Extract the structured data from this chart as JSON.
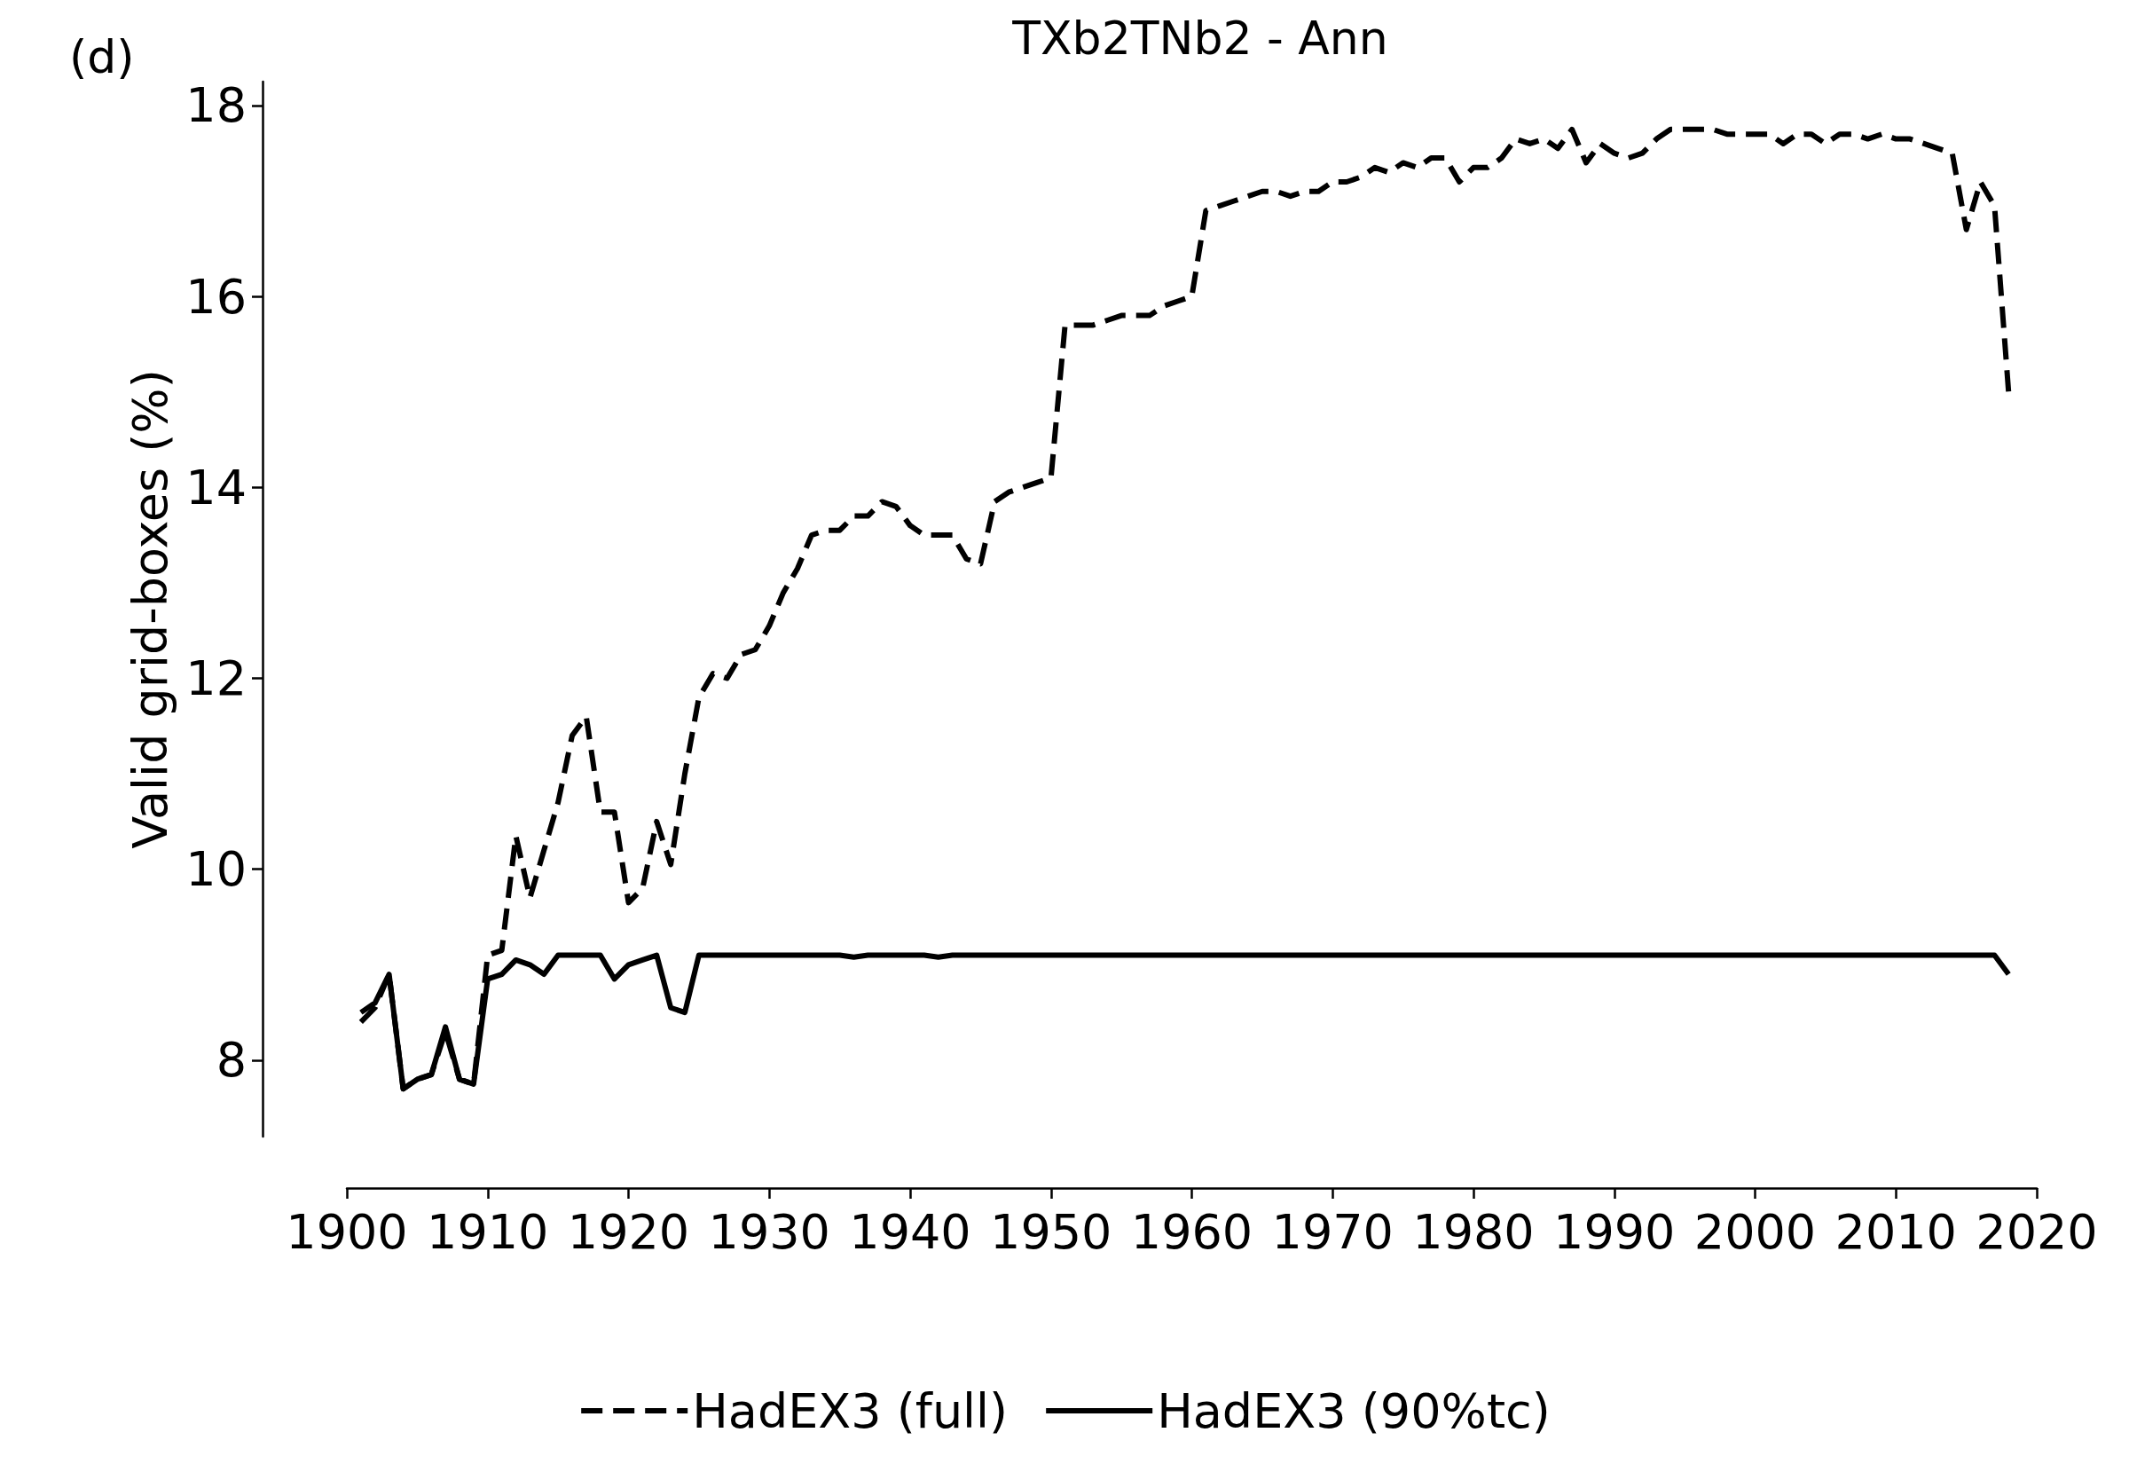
{
  "chart_data": {
    "type": "line",
    "title": "TXb2TNb2 - Ann",
    "ylabel": "Valid grid-boxes (%)",
    "annotations": [
      "(d)"
    ],
    "x": [
      1901,
      1902,
      1903,
      1904,
      1905,
      1906,
      1907,
      1908,
      1909,
      1910,
      1911,
      1912,
      1913,
      1914,
      1915,
      1916,
      1917,
      1918,
      1919,
      1920,
      1921,
      1922,
      1923,
      1924,
      1925,
      1926,
      1927,
      1928,
      1929,
      1930,
      1931,
      1932,
      1933,
      1934,
      1935,
      1936,
      1937,
      1938,
      1939,
      1940,
      1941,
      1942,
      1943,
      1944,
      1945,
      1946,
      1947,
      1948,
      1949,
      1950,
      1951,
      1952,
      1953,
      1954,
      1955,
      1956,
      1957,
      1958,
      1959,
      1960,
      1961,
      1962,
      1963,
      1964,
      1965,
      1966,
      1967,
      1968,
      1969,
      1970,
      1971,
      1972,
      1973,
      1974,
      1975,
      1976,
      1977,
      1978,
      1979,
      1980,
      1981,
      1982,
      1983,
      1984,
      1985,
      1986,
      1987,
      1988,
      1989,
      1990,
      1991,
      1992,
      1993,
      1994,
      1995,
      1996,
      1997,
      1998,
      1999,
      2000,
      2001,
      2002,
      2003,
      2004,
      2005,
      2006,
      2007,
      2008,
      2009,
      2010,
      2011,
      2012,
      2013,
      2014,
      2015,
      2016,
      2017,
      2018
    ],
    "series": [
      {
        "name": "HadEX3 (full)",
        "color": "#000000",
        "line_style": "dashed",
        "values": [
          8.4,
          8.55,
          8.9,
          7.7,
          7.8,
          7.85,
          8.3,
          7.8,
          7.75,
          9.1,
          9.15,
          10.35,
          9.7,
          10.2,
          10.7,
          11.4,
          11.6,
          10.6,
          10.6,
          9.65,
          9.8,
          10.5,
          10.05,
          11.0,
          11.8,
          12.05,
          12.0,
          12.25,
          12.3,
          12.55,
          12.9,
          13.15,
          13.5,
          13.55,
          13.55,
          13.7,
          13.7,
          13.85,
          13.8,
          13.6,
          13.5,
          13.5,
          13.5,
          13.25,
          13.2,
          13.85,
          13.95,
          14.0,
          14.05,
          14.1,
          15.7,
          15.7,
          15.7,
          15.75,
          15.8,
          15.8,
          15.8,
          15.9,
          15.95,
          16.0,
          16.9,
          16.95,
          17.0,
          17.05,
          17.1,
          17.1,
          17.05,
          17.1,
          17.1,
          17.2,
          17.2,
          17.25,
          17.35,
          17.3,
          17.4,
          17.35,
          17.45,
          17.45,
          17.2,
          17.35,
          17.35,
          17.45,
          17.65,
          17.6,
          17.65,
          17.55,
          17.75,
          17.4,
          17.6,
          17.5,
          17.45,
          17.5,
          17.65,
          17.75,
          17.75,
          17.75,
          17.75,
          17.7,
          17.7,
          17.7,
          17.7,
          17.6,
          17.7,
          17.7,
          17.6,
          17.7,
          17.7,
          17.65,
          17.7,
          17.65,
          17.65,
          17.6,
          17.55,
          17.5,
          16.7,
          17.2,
          16.95,
          15.0
        ]
      },
      {
        "name": "HadEX3 (90%tc)",
        "color": "#000000",
        "line_style": "solid",
        "values": [
          8.5,
          8.6,
          8.9,
          7.7,
          7.8,
          7.85,
          8.35,
          7.8,
          7.75,
          8.85,
          8.9,
          9.05,
          9.0,
          8.9,
          9.1,
          9.1,
          9.1,
          9.1,
          8.85,
          9.0,
          9.05,
          9.1,
          8.55,
          8.5,
          9.1,
          9.1,
          9.1,
          9.1,
          9.1,
          9.1,
          9.1,
          9.1,
          9.1,
          9.1,
          9.1,
          9.08,
          9.1,
          9.1,
          9.1,
          9.1,
          9.1,
          9.08,
          9.1,
          9.1,
          9.1,
          9.1,
          9.1,
          9.1,
          9.1,
          9.1,
          9.1,
          9.1,
          9.1,
          9.1,
          9.1,
          9.1,
          9.1,
          9.1,
          9.1,
          9.1,
          9.1,
          9.1,
          9.1,
          9.1,
          9.1,
          9.1,
          9.1,
          9.1,
          9.1,
          9.1,
          9.1,
          9.1,
          9.1,
          9.1,
          9.1,
          9.1,
          9.1,
          9.1,
          9.1,
          9.1,
          9.1,
          9.1,
          9.1,
          9.1,
          9.1,
          9.1,
          9.1,
          9.1,
          9.1,
          9.1,
          9.1,
          9.1,
          9.1,
          9.1,
          9.1,
          9.1,
          9.1,
          9.1,
          9.1,
          9.1,
          9.1,
          9.1,
          9.1,
          9.1,
          9.1,
          9.1,
          9.1,
          9.1,
          9.1,
          9.1,
          9.1,
          9.1,
          9.1,
          9.1,
          9.1,
          9.1,
          9.1,
          8.9
        ]
      }
    ],
    "xlim": [
      1900,
      2020
    ],
    "xticks": [
      1900,
      1910,
      1920,
      1930,
      1940,
      1950,
      1960,
      1970,
      1980,
      1990,
      2000,
      2010,
      2020
    ],
    "ylim": [
      7.2,
      18.25
    ],
    "yticks": [
      8,
      10,
      12,
      14,
      16,
      18
    ],
    "grid": false,
    "legend": "bottom",
    "marker": "none"
  }
}
